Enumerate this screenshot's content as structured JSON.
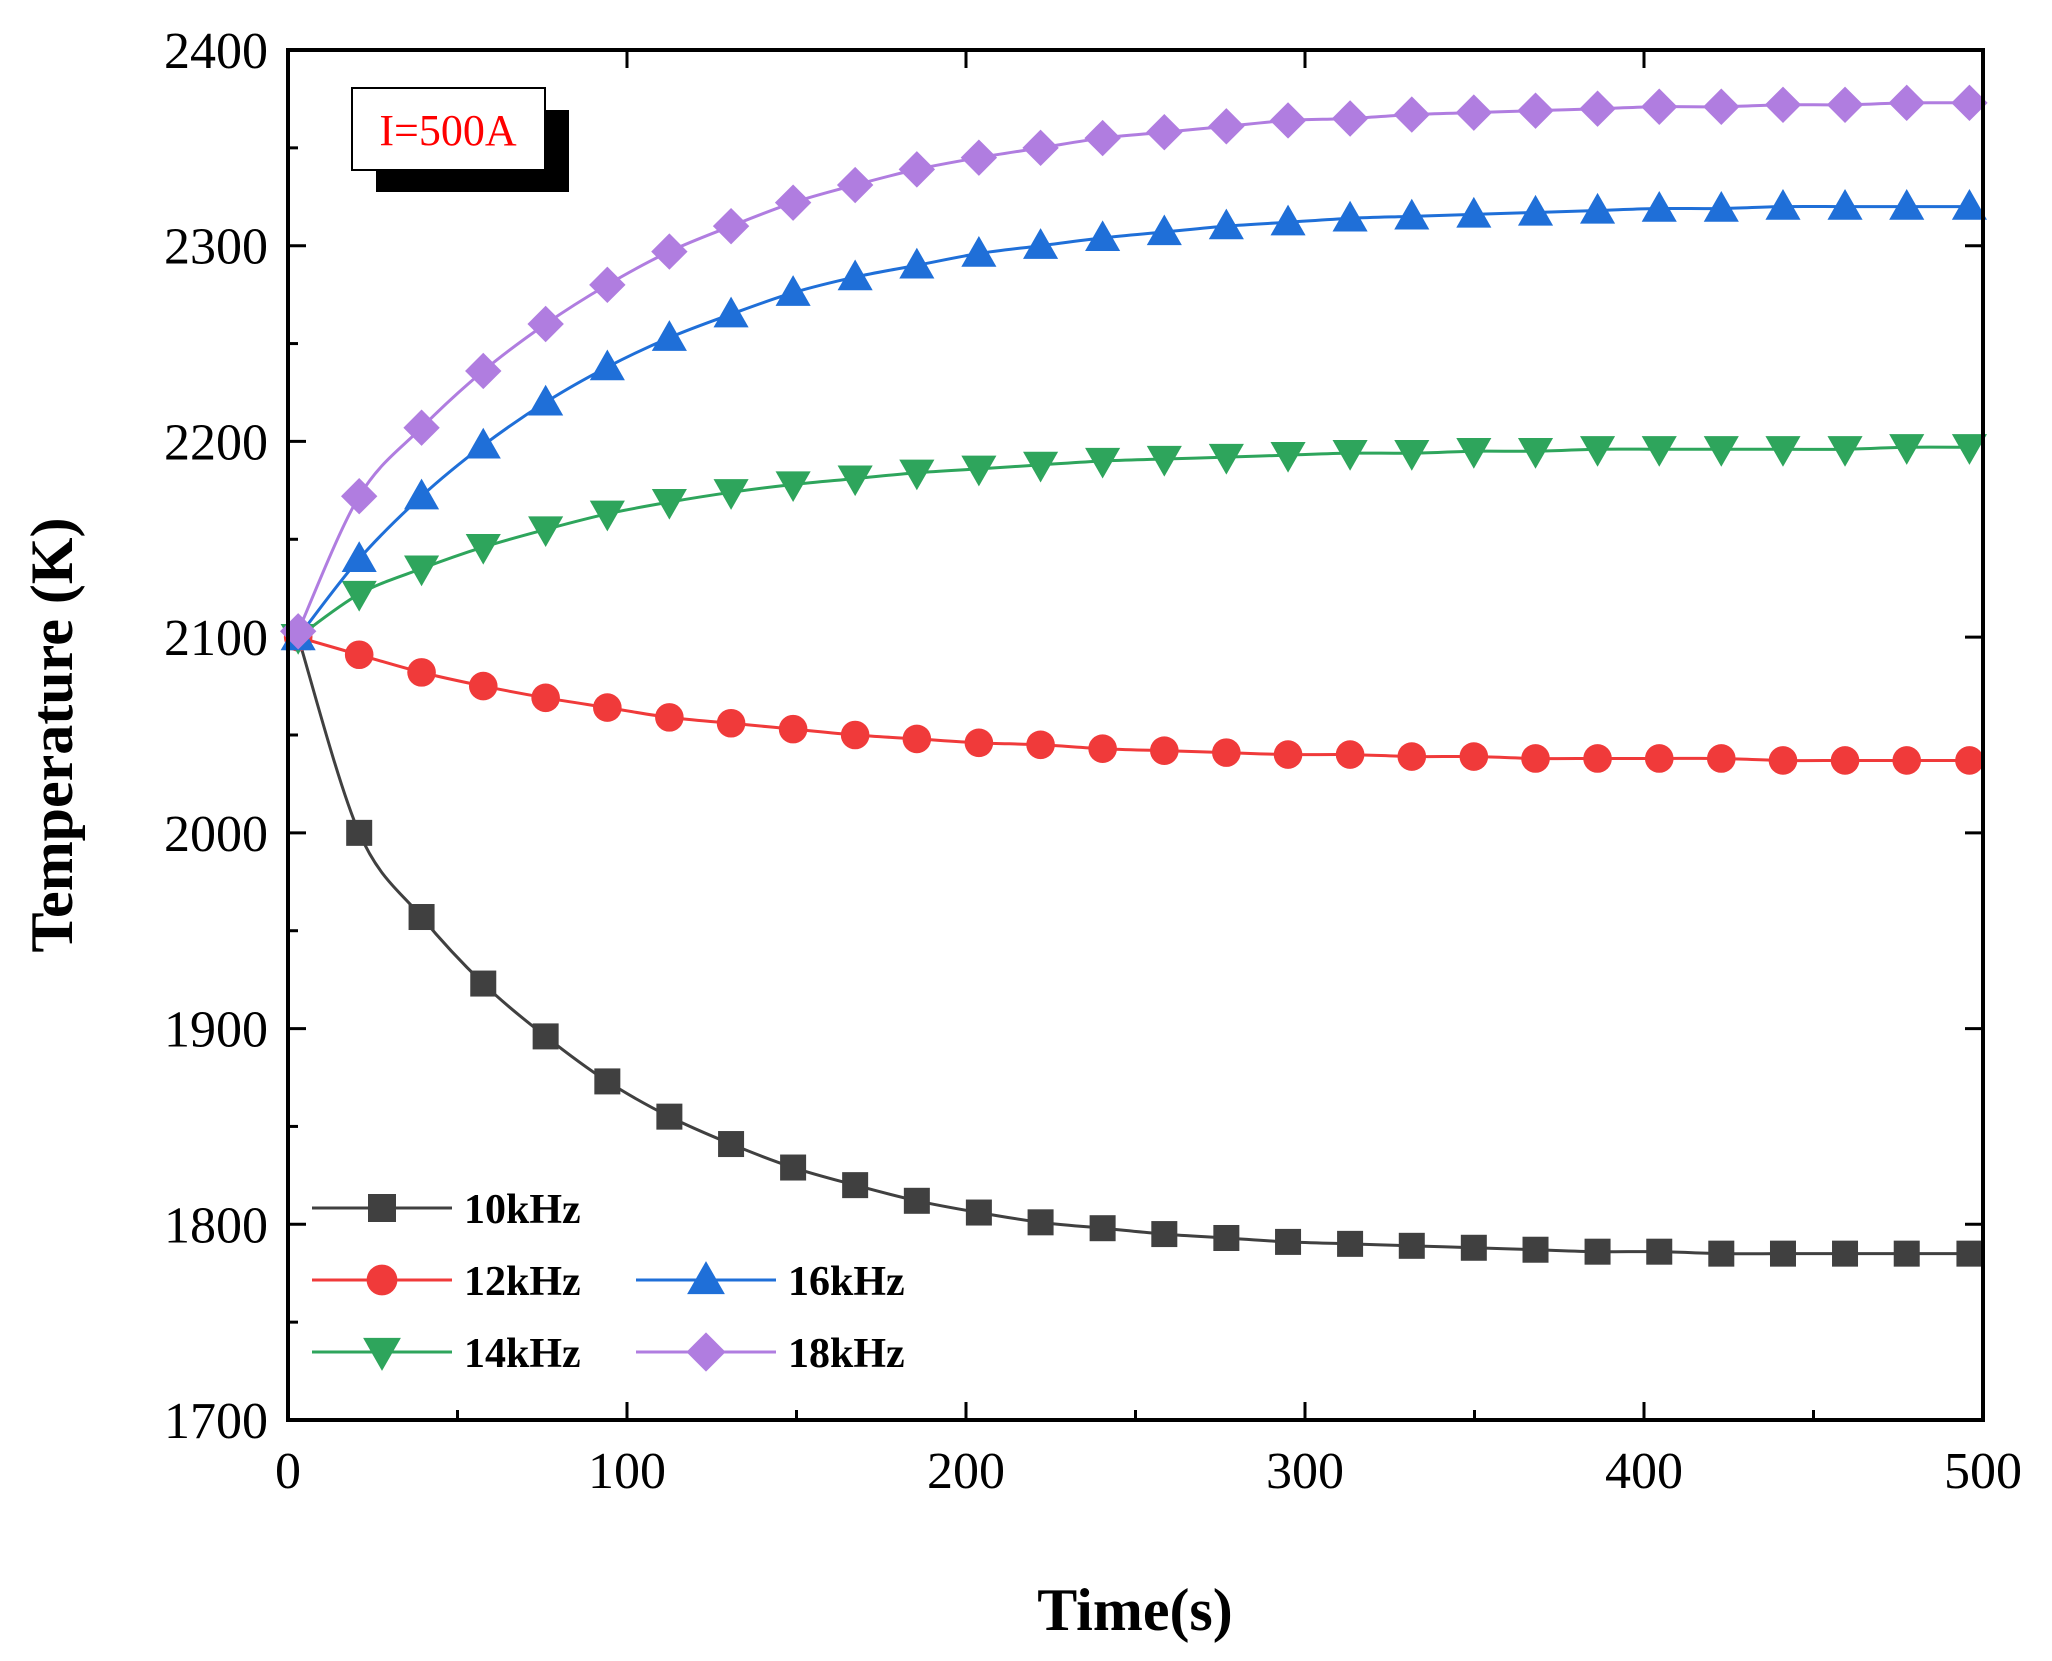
{
  "chart_data": {
    "type": "line",
    "title": "",
    "xlabel": "Time(s)",
    "ylabel": "Temperature (K)",
    "xlim": [
      0,
      500
    ],
    "ylim": [
      1700,
      2400
    ],
    "xticks": [
      "0",
      "100",
      "200",
      "300",
      "400",
      "500"
    ],
    "yticks": [
      "1700",
      "1800",
      "1900",
      "2000",
      "2100",
      "2200",
      "2300",
      "2400"
    ],
    "annotation": "I=500A",
    "x": [
      3,
      21,
      39.4,
      57.6,
      76,
      94.2,
      112.5,
      130.7,
      149,
      167.3,
      185.5,
      203.8,
      222,
      240.3,
      258.5,
      276.8,
      295,
      313.3,
      331.5,
      349.8,
      368,
      386.3,
      404.5,
      422.8,
      441,
      459.3,
      477.5,
      496
    ],
    "series": [
      {
        "name": "10kHz",
        "color": "#404040",
        "marker": "square",
        "values": [
          2100,
          2000,
          1957,
          1923,
          1896,
          1873,
          1855,
          1841,
          1829,
          1820,
          1812,
          1806,
          1801,
          1798,
          1795,
          1793,
          1791,
          1790,
          1789,
          1788,
          1787,
          1786,
          1786,
          1785,
          1785,
          1785,
          1785,
          1785
        ]
      },
      {
        "name": "12kHz",
        "color": "#f03a3a",
        "marker": "circle",
        "values": [
          2100,
          2091,
          2082,
          2075,
          2069,
          2064,
          2059,
          2056,
          2053,
          2050,
          2048,
          2046,
          2045,
          2043,
          2042,
          2041,
          2040,
          2040,
          2039,
          2039,
          2038,
          2038,
          2038,
          2038,
          2037,
          2037,
          2037,
          2037
        ]
      },
      {
        "name": "14kHz",
        "color": "#2ea55c",
        "marker": "triangle-down",
        "values": [
          2100,
          2122,
          2135,
          2146,
          2155,
          2163,
          2169,
          2174,
          2178,
          2181,
          2184,
          2186,
          2188,
          2190,
          2191,
          2192,
          2193,
          2194,
          2194,
          2195,
          2195,
          2196,
          2196,
          2196,
          2196,
          2196,
          2197,
          2197
        ]
      },
      {
        "name": "16kHz",
        "color": "#1f6fd8",
        "marker": "triangle-up",
        "values": [
          2100,
          2140,
          2172,
          2198,
          2220,
          2238,
          2253,
          2265,
          2276,
          2284,
          2290,
          2296,
          2300,
          2304,
          2307,
          2310,
          2312,
          2314,
          2315,
          2316,
          2317,
          2318,
          2319,
          2319,
          2320,
          2320,
          2320,
          2320
        ]
      },
      {
        "name": "18kHz",
        "color": "#b07de0",
        "marker": "diamond",
        "values": [
          2103,
          2172,
          2207,
          2236,
          2260,
          2280,
          2297,
          2310,
          2322,
          2331,
          2339,
          2345,
          2350,
          2355,
          2358,
          2361,
          2364,
          2365,
          2367,
          2368,
          2369,
          2370,
          2371,
          2371,
          2372,
          2372,
          2373,
          2373
        ]
      }
    ]
  }
}
